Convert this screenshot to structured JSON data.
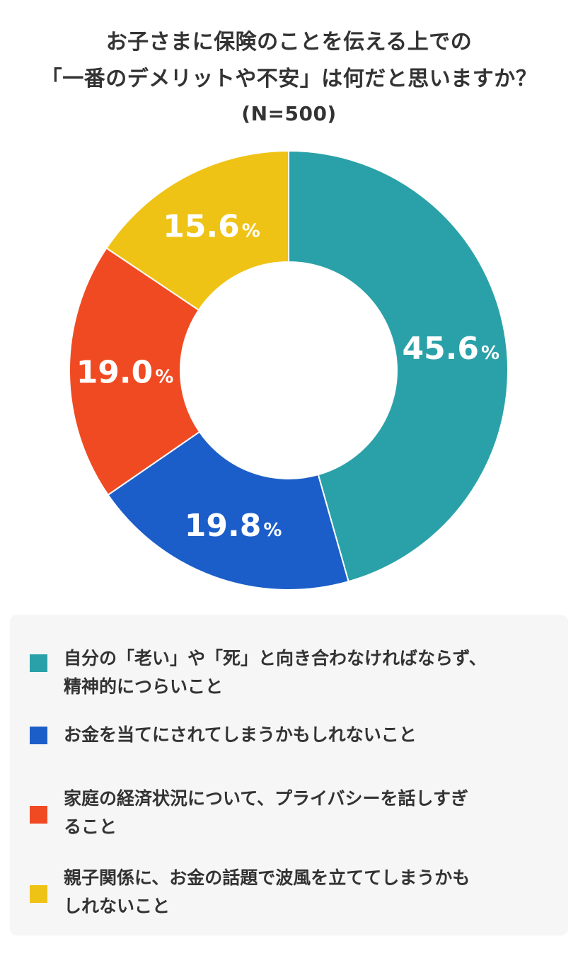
{
  "title": {
    "line1": "お子さまに保険のことを伝える上での",
    "line2": "「一番のデメリットや不安」は何だと思いますか？",
    "line3": "(N=500)"
  },
  "chart_data": {
    "type": "pie",
    "donut": true,
    "unit": "%",
    "series": [
      {
        "value": 45.6,
        "label": "45.6",
        "color": "#2aa1a8"
      },
      {
        "value": 19.8,
        "label": "19.8",
        "color": "#1c5ec9"
      },
      {
        "value": 19.0,
        "label": "19.0",
        "color": "#f04a22"
      },
      {
        "value": 15.6,
        "label": "15.6",
        "color": "#efc316"
      }
    ]
  },
  "legend": {
    "items": [
      {
        "lines": [
          "自分の「老い」や「死」と向き合わなければならず、",
          "精神的につらいこと"
        ],
        "color": "#2aa1a8"
      },
      {
        "lines": [
          "お金を当てにされてしまうかもしれないこと"
        ],
        "color": "#1c5ec9"
      },
      {
        "lines": [
          "家庭の経済状況について、プライバシーを話しすぎ",
          "ること"
        ],
        "color": "#f04a22"
      },
      {
        "lines": [
          "親子関係に、お金の話題で波風を立ててしまうかも",
          "しれないこと"
        ],
        "color": "#efc316"
      }
    ]
  }
}
